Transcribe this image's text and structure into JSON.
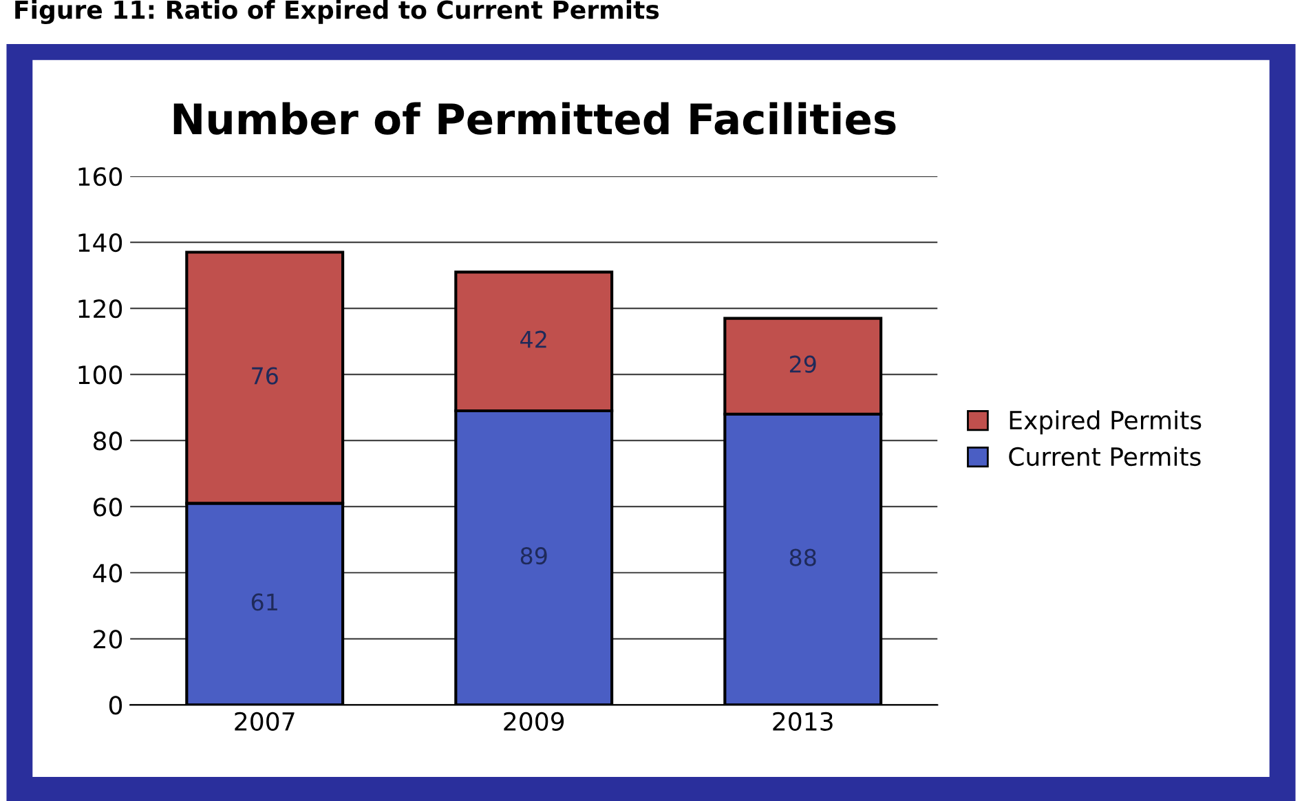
{
  "chart_data": {
    "type": "bar",
    "title": "Number of Permitted Facilities",
    "annotations": [
      "Figure 11: Ratio of Expired to Current Permits"
    ],
    "categories": [
      "2007",
      "2009",
      "2013"
    ],
    "series": [
      {
        "name": "Current Permits",
        "color": "#4a5ec4",
        "values": [
          61,
          89,
          88
        ]
      },
      {
        "name": "Expired Permits",
        "color": "#c0504d",
        "values": [
          76,
          42,
          29
        ]
      }
    ],
    "stacked": true,
    "ylim": [
      0,
      160
    ],
    "yticks": [
      0,
      20,
      40,
      60,
      80,
      100,
      120,
      140,
      160
    ],
    "grid": "y",
    "legend": "right",
    "data_labels": true
  }
}
